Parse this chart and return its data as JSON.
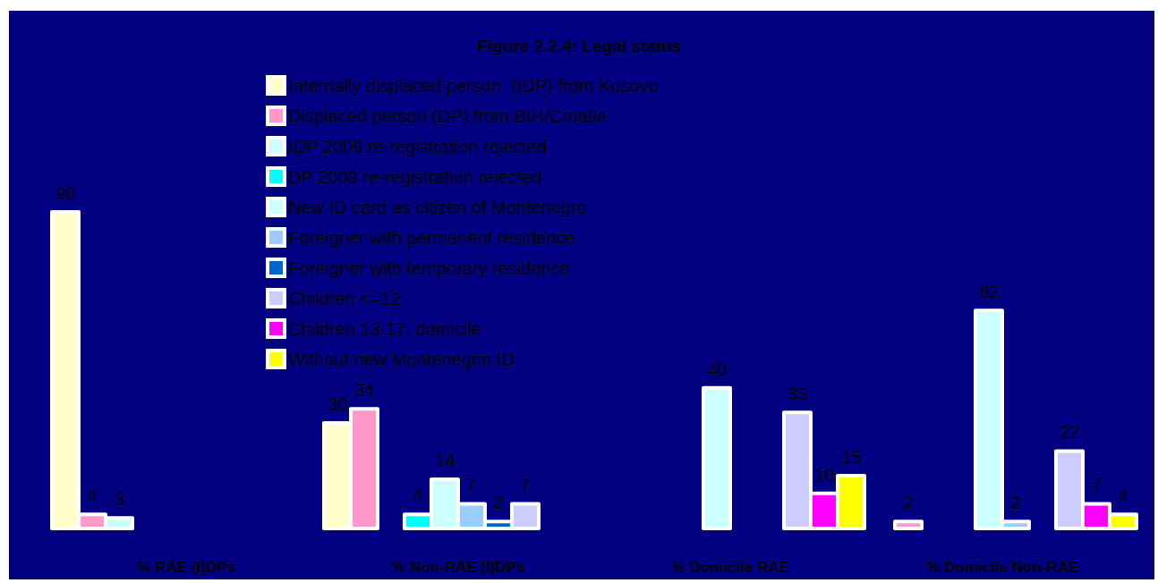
{
  "chart_data": {
    "type": "bar",
    "title": "Figure 2.2.4: Legal status",
    "categories": [
      "% RAE (I)DPs",
      "% Non-RAE (I)DPs",
      "% Domicile RAE",
      "% Domicile Non-RAE"
    ],
    "series": [
      {
        "name": "Internally displaced person  (IDP) from Kosovo",
        "color": "#ffffcc",
        "values": [
          90,
          30,
          null,
          null
        ]
      },
      {
        "name": "Displaced person (DP) from BIH/Croatia",
        "color": "#ff99cc",
        "values": [
          4,
          34,
          null,
          2
        ]
      },
      {
        "name": "IDP 2009 re-registration rejected",
        "color": "#ccffff",
        "values": [
          3,
          null,
          null,
          null
        ]
      },
      {
        "name": "DP 2009 re-registration rejected",
        "color": "#00ffff",
        "values": [
          null,
          4,
          null,
          null
        ]
      },
      {
        "name": "New ID card as citizen of Montenegro",
        "color": "#ccffff",
        "values": [
          null,
          14,
          40,
          62
        ]
      },
      {
        "name": "Foreigner with permanent residence",
        "color": "#99ccff",
        "values": [
          null,
          7,
          null,
          2
        ]
      },
      {
        "name": "Foreigner with temporary residence",
        "color": "#0066cc",
        "values": [
          null,
          2,
          null,
          null
        ]
      },
      {
        "name": "Children <=12",
        "color": "#ccccff",
        "values": [
          null,
          7,
          33,
          22
        ]
      },
      {
        "name": "Children 13-17, domicile",
        "color": "#ff00ff",
        "values": [
          null,
          null,
          10,
          7
        ]
      },
      {
        "name": "Without new Montenegrin ID",
        "color": "#ffff00",
        "values": [
          null,
          null,
          15,
          4
        ]
      }
    ],
    "data_labels": true,
    "legend": "top"
  }
}
